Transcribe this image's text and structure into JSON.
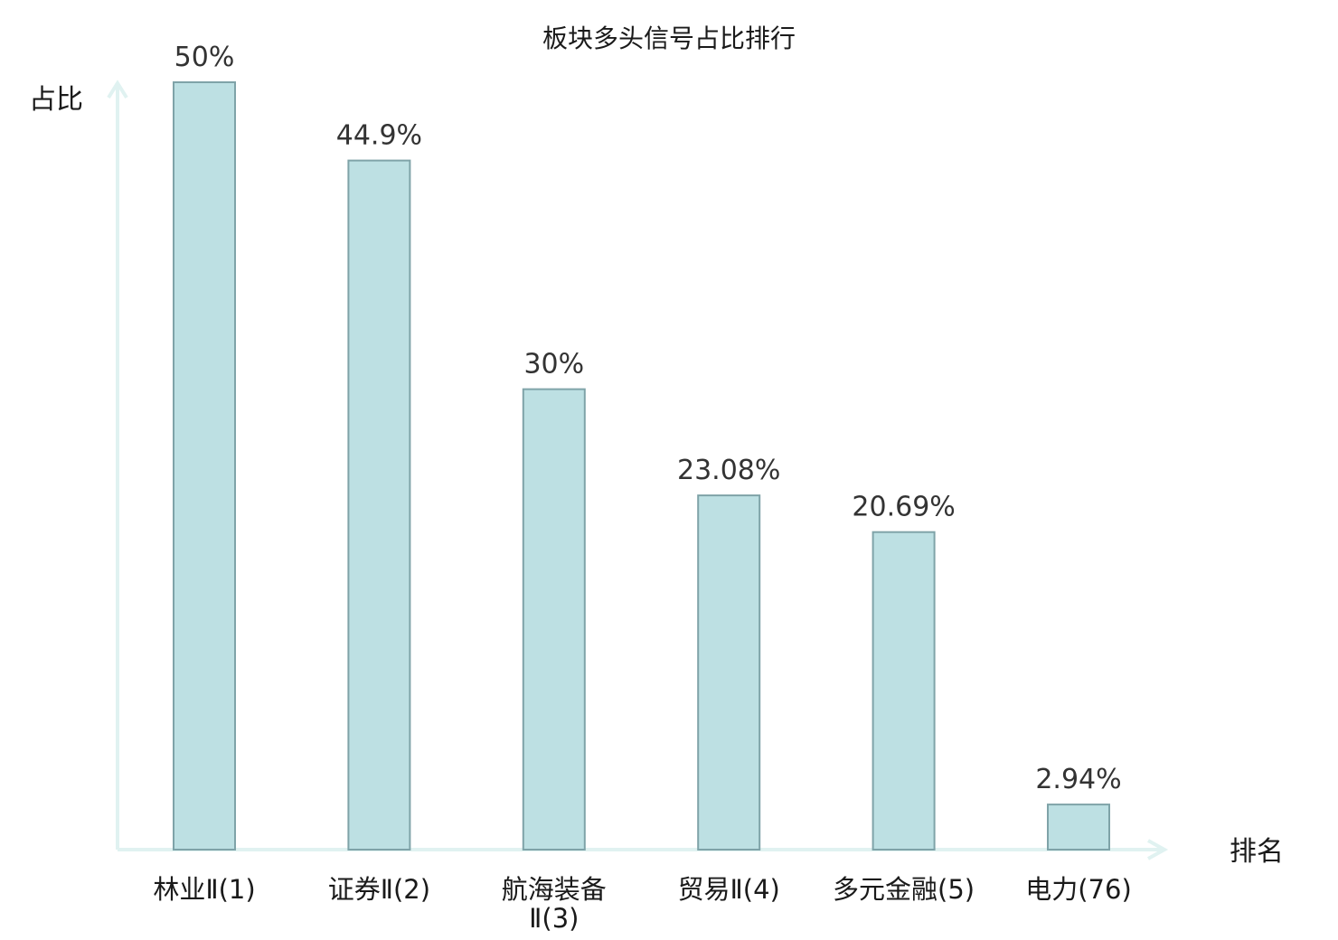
{
  "chart_data": {
    "type": "bar",
    "title": "板块多头信号占比排行",
    "ylabel": "占比",
    "xlabel": "排名",
    "ylim": [
      0,
      50
    ],
    "categories": [
      "林业Ⅱ(1)",
      "证券Ⅱ(2)",
      "航海装备Ⅱ(3)",
      "贸易Ⅱ(4)",
      "多元金融(5)",
      "电力(76)"
    ],
    "category_lines": [
      [
        "林业Ⅱ(1)"
      ],
      [
        "证券Ⅱ(2)"
      ],
      [
        "航海装备",
        "Ⅱ(3)"
      ],
      [
        "贸易Ⅱ(4)"
      ],
      [
        "多元金融(5)"
      ],
      [
        "电力(76)"
      ]
    ],
    "values": [
      50,
      44.9,
      30,
      23.08,
      20.69,
      2.94
    ],
    "value_labels": [
      "50%",
      "44.9%",
      "30%",
      "23.08%",
      "20.69%",
      "2.94%"
    ],
    "highlight_index": 5,
    "grid": false,
    "colors": {
      "bar_fill": "#bde0e3",
      "bar_stroke": "#7fa3a8",
      "axis": "#e0f2f1",
      "highlight_label": "#e0000f",
      "text": "#1a1a1a"
    }
  }
}
